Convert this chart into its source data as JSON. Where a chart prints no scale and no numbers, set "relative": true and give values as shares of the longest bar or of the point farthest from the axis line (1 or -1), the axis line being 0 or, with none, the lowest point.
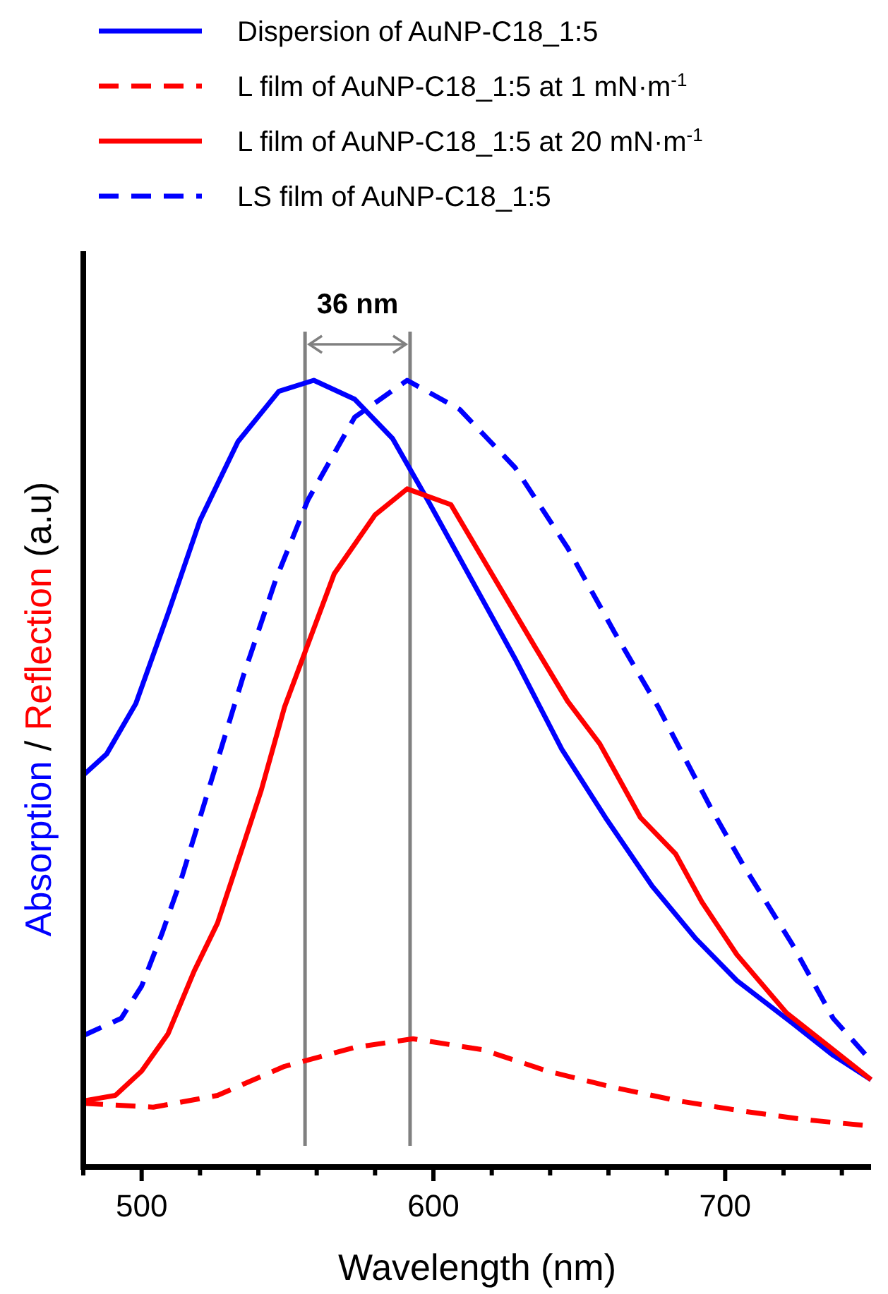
{
  "chart_data": {
    "type": "line",
    "relative": true,
    "xlabel": "Wavelength (nm)",
    "ylabel": "Absorption / Reflection (a.u)",
    "xlim": [
      480,
      750
    ],
    "xticks": [
      {
        "value": 480,
        "label": null
      },
      500,
      {
        "value": 520,
        "label": null
      },
      {
        "value": 540,
        "label": null
      },
      {
        "value": 560,
        "label": null
      },
      {
        "value": 580,
        "label": null
      },
      600,
      {
        "value": 620,
        "label": null
      },
      {
        "value": 640,
        "label": null
      },
      {
        "value": 660,
        "label": null
      },
      {
        "value": 680,
        "label": null
      },
      700,
      {
        "value": 720,
        "label": null
      },
      {
        "value": 740,
        "label": null
      }
    ],
    "legend": "top",
    "series": [
      {
        "name": "Dispersion of AuNP-C18_1:5",
        "color": "#0000ff",
        "line_style": "solid",
        "x": [
          480,
          488,
          498,
          509,
          520,
          533,
          547,
          559,
          573,
          586,
          598,
          613,
          628,
          644,
          659,
          675,
          690,
          704,
          723,
          737,
          750
        ],
        "values": [
          0.498,
          0.525,
          0.589,
          0.703,
          0.822,
          0.922,
          0.986,
          1.0,
          0.976,
          0.926,
          0.848,
          0.747,
          0.646,
          0.531,
          0.444,
          0.357,
          0.29,
          0.237,
          0.183,
          0.142,
          0.111
        ]
      },
      {
        "name": "L film of AuNP-C18_1:5 at 1 mN·m$^{-1}$",
        "color": "#ff0000",
        "line_style": "dashed",
        "x": [
          480,
          504,
          526,
          549,
          573,
          593,
          617,
          639,
          662,
          684,
          706,
          728,
          750
        ],
        "values": [
          0.081,
          0.076,
          0.091,
          0.128,
          0.152,
          0.163,
          0.149,
          0.122,
          0.101,
          0.084,
          0.071,
          0.06,
          0.052
        ]
      },
      {
        "name": "L film of AuNP-C18_1:5 at 20 mN·m$^{-1}$",
        "color": "#ff0000",
        "line_style": "solid",
        "x": [
          480,
          491,
          500,
          509,
          518,
          526,
          535,
          541,
          549,
          566,
          580,
          591,
          606,
          620,
          635,
          646,
          657,
          671,
          683,
          692,
          704,
          721,
          737,
          750
        ],
        "values": [
          0.084,
          0.091,
          0.122,
          0.169,
          0.249,
          0.31,
          0.411,
          0.479,
          0.585,
          0.754,
          0.829,
          0.862,
          0.842,
          0.754,
          0.66,
          0.592,
          0.538,
          0.444,
          0.398,
          0.337,
          0.27,
          0.196,
          0.149,
          0.111
        ]
      },
      {
        "name": "LS film of AuNP-C18_1:5",
        "color": "#0000ff",
        "line_style": "dashed",
        "x": [
          480,
          493,
          500,
          507,
          514,
          520,
          535,
          546,
          557,
          573,
          591,
          609,
          628,
          646,
          662,
          677,
          695,
          706,
          723,
          737,
          750
        ],
        "values": [
          0.167,
          0.189,
          0.23,
          0.297,
          0.371,
          0.444,
          0.626,
          0.747,
          0.848,
          0.953,
          1.0,
          0.963,
          0.889,
          0.787,
          0.68,
          0.585,
          0.457,
          0.385,
          0.283,
          0.189,
          0.135
        ]
      }
    ],
    "ref_lines": [
      {
        "axis": "x",
        "value": 556,
        "color": "#808080"
      },
      {
        "axis": "x",
        "value": 592,
        "color": "#808080"
      }
    ],
    "annotations": [
      "36 nm"
    ]
  }
}
